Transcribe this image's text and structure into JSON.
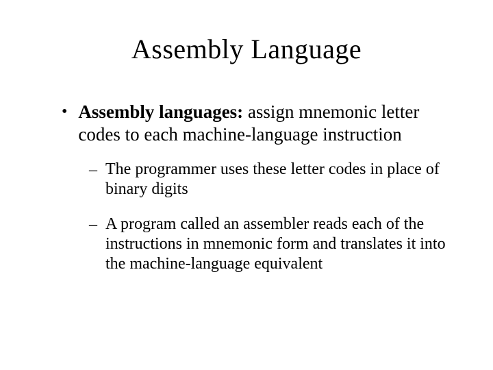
{
  "slide": {
    "title": "Assembly Language",
    "title_fontsize": 40,
    "background_color": "#ffffff",
    "text_color": "#000000",
    "font_family": "Times New Roman",
    "main_bullet": {
      "marker": "•",
      "bold_term": "Assembly languages:",
      "rest": " assign mnemonic letter codes to each machine-language instruction",
      "fontsize": 27
    },
    "sub_bullets": [
      {
        "marker": "–",
        "text": "The programmer uses these letter codes in place of binary digits",
        "fontsize": 24
      },
      {
        "marker": "–",
        "text": "A program called an assembler reads each of the instructions in mnemonic form and translates it into the machine-language equivalent",
        "fontsize": 24
      }
    ]
  }
}
